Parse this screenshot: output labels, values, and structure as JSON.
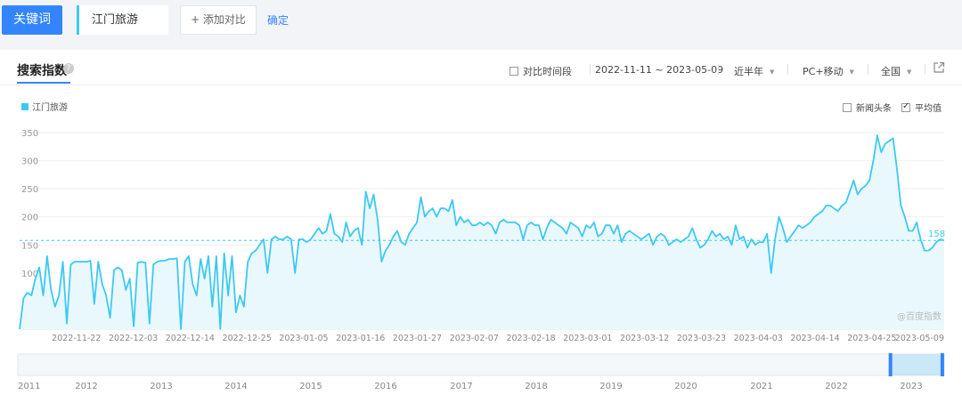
{
  "search": {
    "keyword_button": "关键词",
    "keyword_value": "江门旅游",
    "add_compare": "+ 添加对比",
    "confirm": "确定"
  },
  "panel": {
    "title": "搜索指数",
    "help_icon": "?",
    "compare_period": "对比时间段",
    "date_range": "2022-11-11 ~ 2023-05-09",
    "period_select": "近半年",
    "device_select": "PC+移动",
    "region_select": "全国",
    "news_checkbox": "新闻头条",
    "avg_checkbox": "平均值",
    "avg_checked": true,
    "news_checked": false,
    "external_icon": "external-link-icon",
    "watermark": "@百度指数"
  },
  "colors": {
    "accent": "#3385ff",
    "series": "#3dc9f2",
    "fill": "#e9f8fd"
  },
  "chart_data": {
    "type": "area",
    "title": "",
    "xlabel": "",
    "ylabel": "",
    "ylim": [
      0,
      350
    ],
    "yticks": [
      100,
      150,
      200,
      250,
      300,
      350
    ],
    "grid": true,
    "legend": {
      "placement": "top-left",
      "entries": [
        "江门旅游"
      ]
    },
    "average": {
      "value": 158,
      "label": "158"
    },
    "x_start": "2022-11-11",
    "x_end": "2023-05-09",
    "xtick_labels": [
      "2022-11-22",
      "2022-12-03",
      "2022-12-14",
      "2022-12-25",
      "2023-01-05",
      "2023-01-16",
      "2023-01-27",
      "2023-02-07",
      "2023-02-18",
      "2023-03-01",
      "2023-03-12",
      "2023-03-23",
      "2023-04-03",
      "2023-04-14",
      "2023-04-25",
      "2023-05-09"
    ],
    "series": [
      {
        "name": "江门旅游",
        "values": [
          0,
          55,
          65,
          60,
          90,
          110,
          60,
          130,
          70,
          40,
          60,
          120,
          10,
          115,
          120,
          120,
          120,
          120,
          122,
          45,
          120,
          80,
          60,
          20,
          105,
          110,
          105,
          70,
          90,
          5,
          118,
          120,
          118,
          10,
          115,
          120,
          122,
          122,
          125,
          125,
          126,
          0,
          120,
          130,
          80,
          60,
          125,
          90,
          130,
          40,
          130,
          0,
          135,
          60,
          130,
          30,
          60,
          40,
          120,
          135,
          140,
          150,
          160,
          100,
          160,
          165,
          160,
          160,
          165,
          160,
          100,
          160,
          160,
          155,
          160,
          170,
          180,
          170,
          175,
          205,
          170,
          165,
          155,
          190,
          165,
          175,
          180,
          150,
          245,
          215,
          240,
          195,
          120,
          140,
          150,
          165,
          175,
          155,
          150,
          170,
          180,
          190,
          235,
          200,
          210,
          215,
          200,
          215,
          215,
          210,
          230,
          185,
          200,
          190,
          195,
          185,
          185,
          190,
          185,
          190,
          185,
          170,
          190,
          195,
          190,
          190,
          190,
          185,
          160,
          185,
          190,
          185,
          185,
          160,
          180,
          195,
          190,
          185,
          180,
          170,
          190,
          185,
          180,
          165,
          185,
          180,
          190,
          165,
          170,
          185,
          185,
          170,
          185,
          155,
          170,
          175,
          170,
          165,
          160,
          165,
          170,
          150,
          165,
          170,
          165,
          150,
          155,
          160,
          155,
          160,
          165,
          180,
          160,
          145,
          150,
          160,
          175,
          165,
          170,
          160,
          165,
          150,
          185,
          160,
          165,
          145,
          160,
          150,
          155,
          155,
          170,
          100,
          160,
          200,
          180,
          155,
          165,
          175,
          185,
          180,
          185,
          190,
          200,
          205,
          210,
          220,
          220,
          215,
          210,
          220,
          225,
          245,
          265,
          240,
          250,
          255,
          265,
          300,
          345,
          315,
          330,
          335,
          340,
          285,
          220,
          200,
          175,
          175,
          190,
          160,
          140,
          140,
          145,
          155,
          160,
          158
        ]
      }
    ]
  },
  "overview": {
    "year_labels": [
      "2011",
      "2012",
      "2013",
      "2014",
      "2015",
      "2016",
      "2017",
      "2018",
      "2019",
      "2020",
      "2021",
      "2022",
      "2023"
    ],
    "window": [
      0.942,
      0.998
    ]
  }
}
